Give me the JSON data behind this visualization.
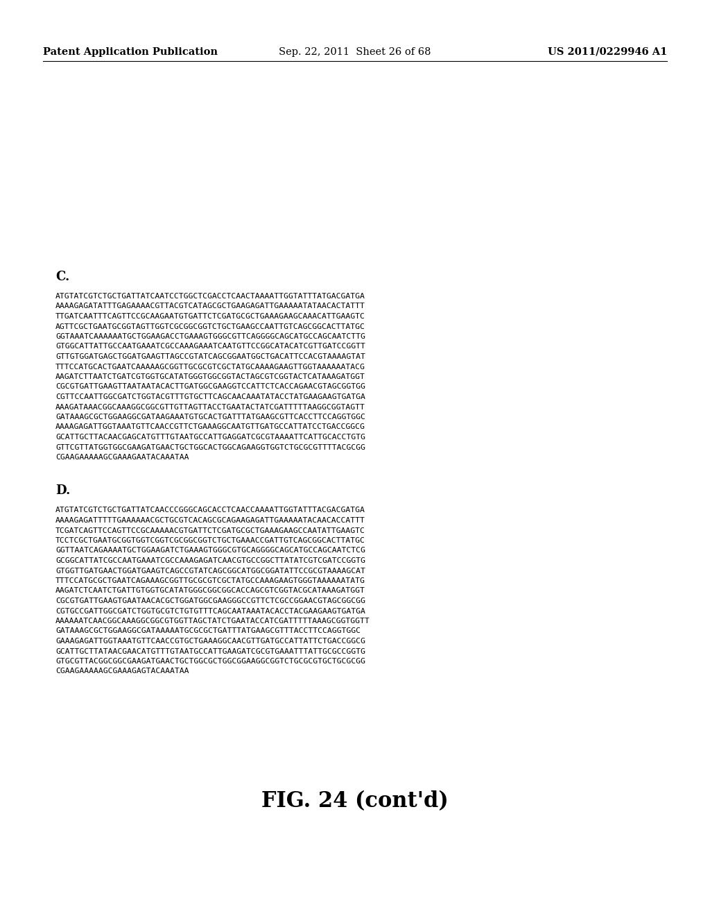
{
  "header_left": "Patent Application Publication",
  "header_middle": "Sep. 22, 2011  Sheet 26 of 68",
  "header_right": "US 2011/0229946 A1",
  "section_c_label": "C.",
  "section_c_lines": [
    "ATGTATCGTCTGCTGATTATCAATCCTGGCTCGACCTCAACTAAAATTGGTATTTATGACGATGA",
    "AAAAGAGATATTTGAGAAAACGTTACGTCATAGCGCTGAAGAGATTGAAAAATATAACACTATTT",
    "TTGATCAATTTCAGTTCCGCAAGAATGTGATTCTCGATGCGCTGAAAGAAGCAAACATTGAAGTC",
    "AGTTCGCTGAATGCGGTAGTTGGTCGCGGCGGTCTGCTGAAGCCAATTGTCAGCGGCACTTATGC",
    "GGTAAATCAAAAAATGCTGGAAGACCTGAAAGTGGGCGTTCAGGGGCAGCATGCCAGCAATCTTG",
    "GTGGCATTATTGCCAATGAAATCGCCAAAGAAATCAATGTTCCGGCATACATCGTTGATCCGGTT",
    "GTTGTGGATGAGCTGGATGAAGTTAGCCGTATCAGCGGAATGGCTGACATTCCACGTAAAAGTAT",
    "TTTCCATGCACTGAATCAAAAAGCGGTTGCGCGTCGCTATGCAAAAGAAGTTGGTAAAAAATACG",
    "AAGATCTTAATCTGATCGTGGTGCATATGGGTGGCGGTACTAGCGTCGGTACTCATAAAGATGGT",
    "CGCGTGATTGAAGTTAATAATACACTTGATGGCGAAGGTCCATTCTCACCAGAACGTAGCGGTGG",
    "CGTTCCAATTGGCGATCTGGTACGTTTGTGCTTCAGCAACAAATATACCTATGAAGAAGTGATGA",
    "AAAGATAAACGGCAAAGGCGGCGTTGTTAGTTACCTGAATACTATCGATTTTTAAGGCGGTAGTT",
    "GATAAAGCGCTGGAAGGCGATAAGAAATGTGCACTGATTTATGAAGCGTTCACCTTCCAGGTGGC",
    "AAAAGAGATTGGTAAATGTTCAACCGTTCTGAAAGGCAATGTTGATGCCATTATCCTGACCGGCG",
    "GCATTGCTTACAACGAGCATGTTTGTAATGCCATTGAGGATCGCGTAAAATTCATTGCACCTGTG",
    "GTTCGTTATGGTGGCGAAGATGAACTGCTGGCACTGGCAGAAGGTGGTCTGCGCGTTTTACGCGG",
    "CGAAGAAAAAGCGAAAGAATACAAATAA"
  ],
  "section_d_label": "D.",
  "section_d_lines": [
    "ATGTATCGTCTGCTGATTATCAACCCGGGCAGCACCTCAACCAAAATTGGTATTTACGACGATGA",
    "AAAAGAGATTTTTGAAAAAACGCTGCGTCACAGCGCAGAAGAGATTGAAAAATACAACACCATTT",
    "TCGATCAGTTCCAGTTCCGCAAAAACGTGATTCTCGATGCGCTGAAAGAAGCCAATATTGAAGTC",
    "TCCTCGCTGAATGCGGTGGTCGGTCGCGGCGGTCTGCTGAAACCGATTGTCAGCGGCACTTATGC",
    "GGTTAATCAGAAAATGCTGGAAGATCTGAAAGTGGGCGTGCAGGGGCAGCATGCCAGCAATCTCG",
    "GCGGCATTATCGCCAATGAAATCGCCAAAGAGATCAACGTGCCGGCTTATATCGTCGATCCGGTG",
    "GTGGTTGATGAACTGGATGAAGTCAGCCGTATCAGCGGCATGGCGGATATTCCGCGTAAAAGCAT",
    "TTTCCATGCGCTGAATCAGAAAGCGGTTGCGCGTCGCTATGCCAAAGAAGTGGGTAAAAAATATG",
    "AAGATCTCAATCTGATTGTGGTGCATATGGGCGGCGGCACCAGCGTCGGTACGCATAAAGATGGT",
    "CGCGTGATTGAAGTGAATAACACGCTGGATGGCGAAGGGCCGTTCTCGCCGGAACGTAGCGGCGG",
    "CGTGCCGATTGGCGATCTGGTGCGTCTGTGTTTCAGCAATAAATACACCTACGAAGAAGTGATGA",
    "AAAAAATCAACGGCAAAGGCGGCGTGGTTAGCTATCTGAATACCATCGATTTTTAAAGCGGTGGTT",
    "GATAAAGCGCTGGAAGGCGATAAAAATGCGCGCTGATTTATGAAGCGTTTACCTTCCAGGTGGC",
    "GAAAGAGATTGGTAAATGTTCAACCGTGCTGAAAGGCAACGTTGATGCCATTATTCTGACCGGCG",
    "GCATTGCTTATAACGAACATGTTTGTAATGCCATTGAAGATCGCGTGAAATTTATTGCGCCGGTG",
    "GTGCGTTACGGCGGCGAAGATGAACTGCTGGCGCTGGCGGAAGGCGGTCTGCGCGTGCTGCGCGG",
    "CGAAGAAAAAGCGAAAGAGTACAAATAA"
  ],
  "figure_label": "FIG. 24 (cont'd)",
  "bg_color": "#ffffff",
  "text_color": "#000000",
  "header_fontsize": 10.5,
  "label_fontsize": 13,
  "seq_fontsize": 8.2,
  "figure_label_fontsize": 22
}
